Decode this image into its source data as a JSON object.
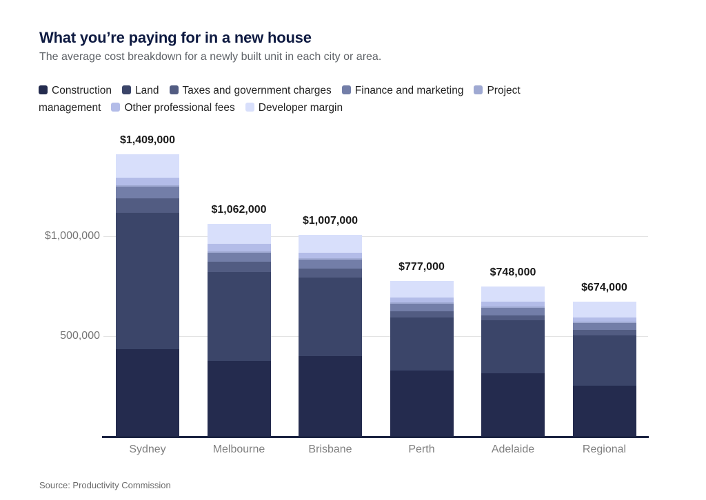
{
  "header": {
    "title": "What you’re paying for in a new house",
    "subtitle": "The average cost breakdown for a newly built unit in each city or area."
  },
  "source": "Source: Productivity Commission",
  "chart_data": {
    "type": "bar",
    "subtype": "stacked-vertical",
    "categories": [
      "Sydney",
      "Melbourne",
      "Brisbane",
      "Perth",
      "Adelaide",
      "Regional"
    ],
    "series": [
      {
        "name": "Construction",
        "color": "#242b4e",
        "values": [
          434000,
          377000,
          400000,
          328000,
          314000,
          252000
        ]
      },
      {
        "name": "Land",
        "color": "#3b4569",
        "values": [
          684000,
          442000,
          393000,
          264000,
          264000,
          250000
        ]
      },
      {
        "name": "Taxes and government charges",
        "color": "#525c82",
        "values": [
          71000,
          52000,
          46000,
          33000,
          24000,
          29000
        ]
      },
      {
        "name": "Finance and marketing",
        "color": "#737ea8",
        "values": [
          58000,
          46000,
          43000,
          38000,
          40000,
          34000
        ]
      },
      {
        "name": "Project management",
        "color": "#9fa9d2",
        "values": [
          9000,
          7000,
          7000,
          6000,
          7000,
          6000
        ]
      },
      {
        "name": "Other professional fees",
        "color": "#b3bce8",
        "values": [
          38000,
          38000,
          27000,
          25000,
          25000,
          23000
        ]
      },
      {
        "name": "Developer margin",
        "color": "#d8dffb",
        "values": [
          115000,
          100000,
          91000,
          83000,
          74000,
          80000
        ]
      }
    ],
    "totals": [
      1409000,
      1062000,
      1007000,
      777000,
      748000,
      674000
    ],
    "total_labels": [
      "$1,409,000",
      "$1,062,000",
      "$1,007,000",
      "$777,000",
      "$748,000",
      "$674,000"
    ],
    "y_axis": {
      "ticks": [
        {
          "value": 1000000,
          "label": "$1,000,000"
        },
        {
          "value": 500000,
          "label": "500,000"
        }
      ],
      "ylim": [
        0,
        1600000
      ],
      "grid": true
    },
    "legend_position": "top"
  }
}
